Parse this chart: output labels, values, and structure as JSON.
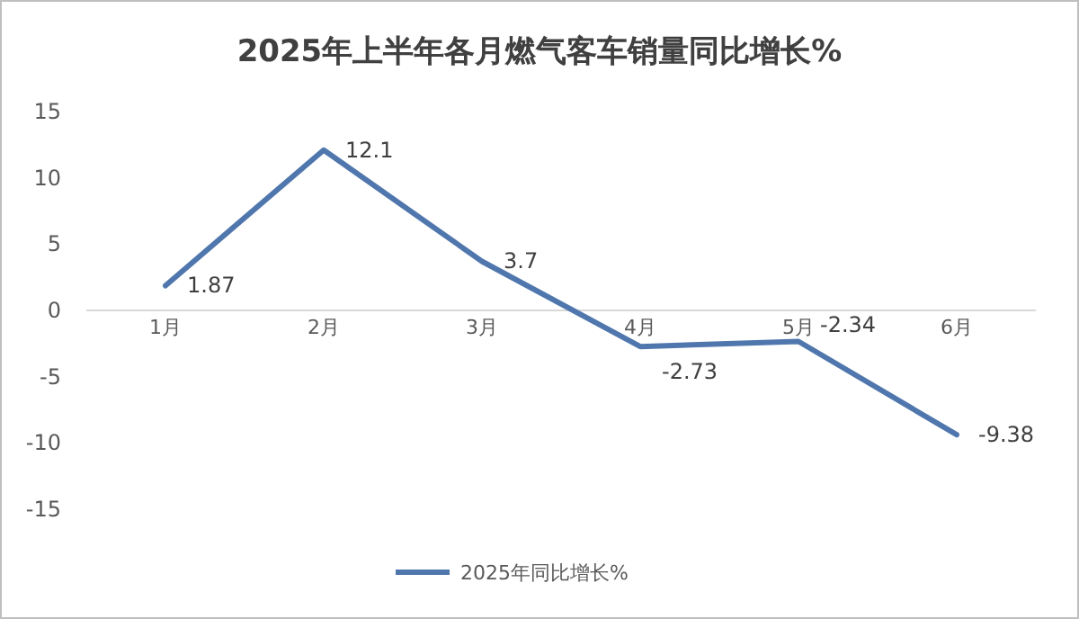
{
  "chart_data": {
    "type": "line",
    "title": "2025年上半年各月燃气客车销量同比增长%",
    "categories": [
      "1月",
      "2月",
      "3月",
      "4月",
      "5月",
      "6月"
    ],
    "series": [
      {
        "name": "2025年同比增长%",
        "color": "#5077ad",
        "values": [
          1.87,
          12.1,
          3.7,
          -2.73,
          -2.34,
          -9.38
        ]
      }
    ],
    "ylim": [
      -15,
      15
    ],
    "yticks": [
      -15,
      -10,
      -5,
      0,
      5,
      10,
      15
    ],
    "data_labels": true,
    "grid": false,
    "legend": "bottom",
    "marker": "none",
    "line_style": "solid"
  }
}
